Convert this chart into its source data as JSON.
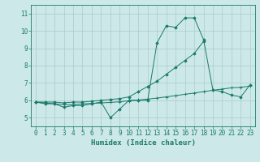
{
  "x": [
    0,
    1,
    2,
    3,
    4,
    5,
    6,
    7,
    8,
    9,
    10,
    11,
    12,
    13,
    14,
    15,
    16,
    17,
    18,
    19,
    20,
    21,
    22,
    23
  ],
  "line_diamond": [
    5.9,
    5.8,
    5.8,
    5.6,
    5.7,
    5.7,
    5.8,
    5.9,
    5.0,
    5.5,
    6.0,
    6.0,
    6.0,
    9.3,
    10.3,
    10.2,
    10.75,
    10.75,
    9.5,
    6.6,
    6.5,
    6.3,
    6.2,
    6.9
  ],
  "line_diag": [
    5.9,
    5.9,
    5.9,
    5.85,
    5.9,
    5.9,
    5.95,
    6.0,
    6.05,
    6.1,
    6.2,
    6.5,
    6.8,
    7.1,
    7.5,
    7.9,
    8.3,
    8.7,
    9.4,
    null,
    null,
    null,
    null,
    null
  ],
  "line_flat": [
    5.9,
    5.85,
    5.8,
    5.75,
    5.75,
    5.8,
    5.82,
    5.85,
    5.88,
    5.92,
    5.97,
    6.02,
    6.07,
    6.13,
    6.2,
    6.27,
    6.35,
    6.42,
    6.5,
    6.58,
    6.65,
    6.72,
    6.75,
    6.82
  ],
  "line_color": "#1a7a6a",
  "bg_color": "#cce8e8",
  "grid_color": "#aacccc",
  "xlabel": "Humidex (Indice chaleur)",
  "ylim": [
    4.5,
    11.5
  ],
  "xlim": [
    -0.5,
    23.5
  ],
  "yticks": [
    5,
    6,
    7,
    8,
    9,
    10,
    11
  ],
  "xticks": [
    0,
    1,
    2,
    3,
    4,
    5,
    6,
    7,
    8,
    9,
    10,
    11,
    12,
    13,
    14,
    15,
    16,
    17,
    18,
    19,
    20,
    21,
    22,
    23
  ]
}
